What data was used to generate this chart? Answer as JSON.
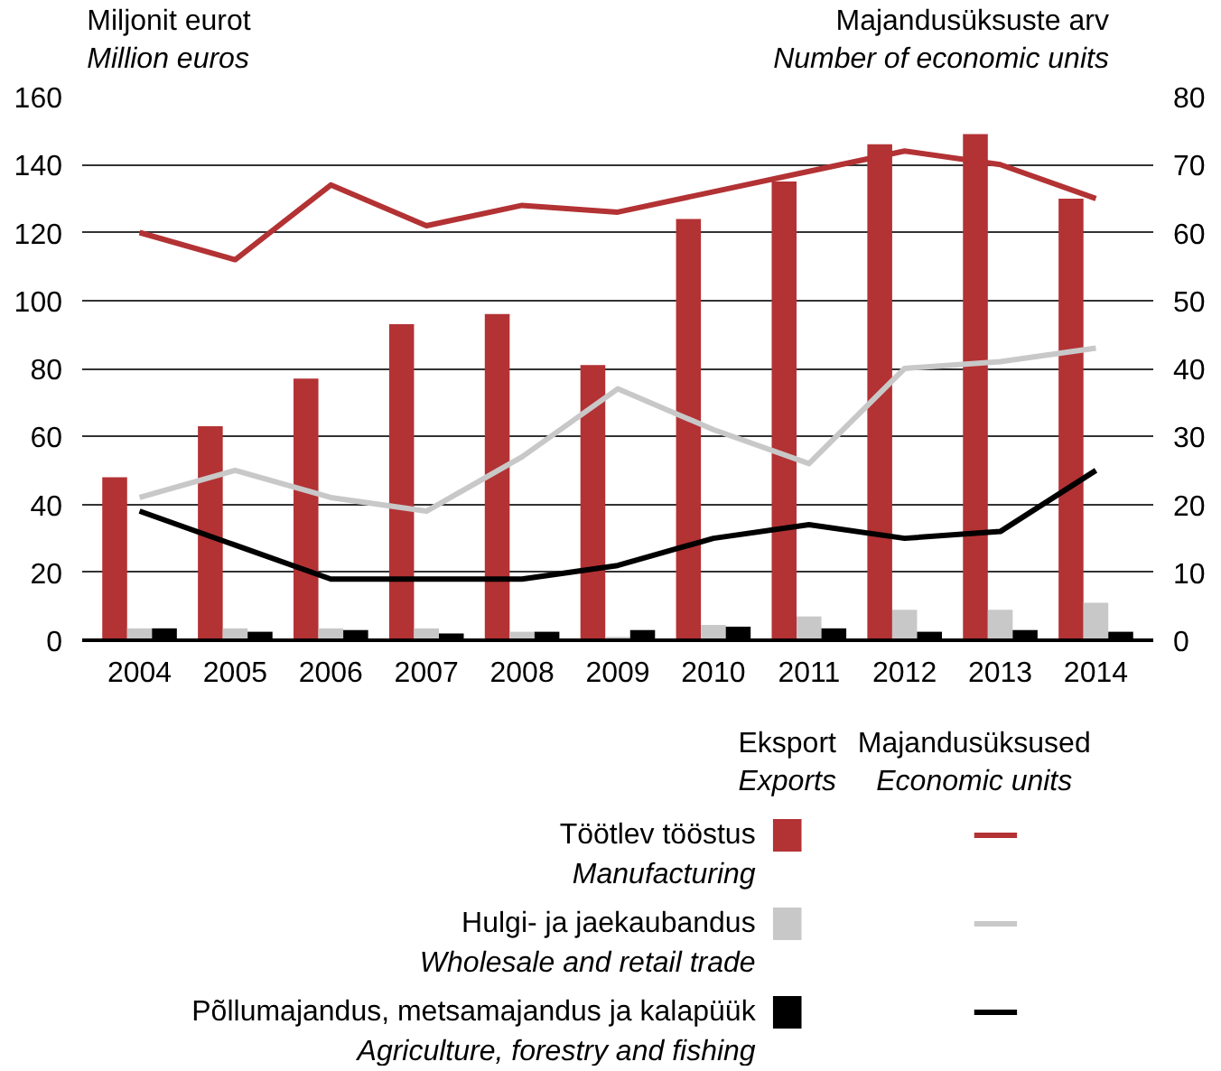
{
  "chart_data": {
    "type": "bar",
    "ylabel": "Miljonit eurot\nMillion euros",
    "y2label": "Majandusüksuste arv\nNumber of economic units",
    "categories": [
      "2004",
      "2005",
      "2006",
      "2007",
      "2008",
      "2009",
      "2010",
      "2011",
      "2012",
      "2013",
      "2014"
    ],
    "series": [
      {
        "name": "Töötlev tööstus\nManufacturing",
        "color": "#b33234",
        "values": [
          48,
          63,
          77,
          93,
          96,
          81,
          124,
          135,
          146,
          149,
          130
        ]
      },
      {
        "name": "Hulgi- ja jaekaubandus\nWholesale and retail trade",
        "color": "#c8c8c8",
        "values": [
          3.5,
          3.5,
          3.5,
          3.5,
          2.5,
          1,
          4.5,
          7,
          9,
          9,
          11
        ]
      },
      {
        "name": "Põllumajandus, metsamajandus ja kalapüük\nAgriculture, forestry and fishing",
        "color": "#000000",
        "values": [
          3.5,
          2.5,
          3,
          2,
          2.5,
          3,
          4,
          3.5,
          2.5,
          3,
          2.5
        ]
      },
      {
        "type": "line",
        "axis": "y2",
        "color": "#b33234",
        "values": [
          60,
          56,
          67,
          61,
          64,
          63,
          66,
          69,
          72,
          70,
          65
        ]
      },
      {
        "type": "line",
        "axis": "y2",
        "color": "#c8c8c8",
        "values": [
          21,
          25,
          21,
          19,
          27,
          37,
          31,
          26,
          40,
          41,
          43
        ]
      },
      {
        "type": "line",
        "axis": "y2",
        "color": "#000000",
        "values": [
          19,
          14,
          9,
          9,
          9,
          11,
          15,
          17,
          15,
          16,
          25
        ]
      }
    ],
    "ylim": [
      0,
      160
    ],
    "yticks": [
      0,
      20,
      40,
      60,
      80,
      100,
      120,
      140,
      160
    ],
    "y2lim": [
      0,
      80
    ],
    "y2ticks": [
      0,
      10,
      20,
      30,
      40,
      50,
      60,
      70,
      80
    ],
    "annotations": [
      "Eksport\nExports",
      "Majandusüksused\nEconomic units"
    ],
    "grid": "y",
    "legend": "bottom",
    "line_style": "solid"
  }
}
